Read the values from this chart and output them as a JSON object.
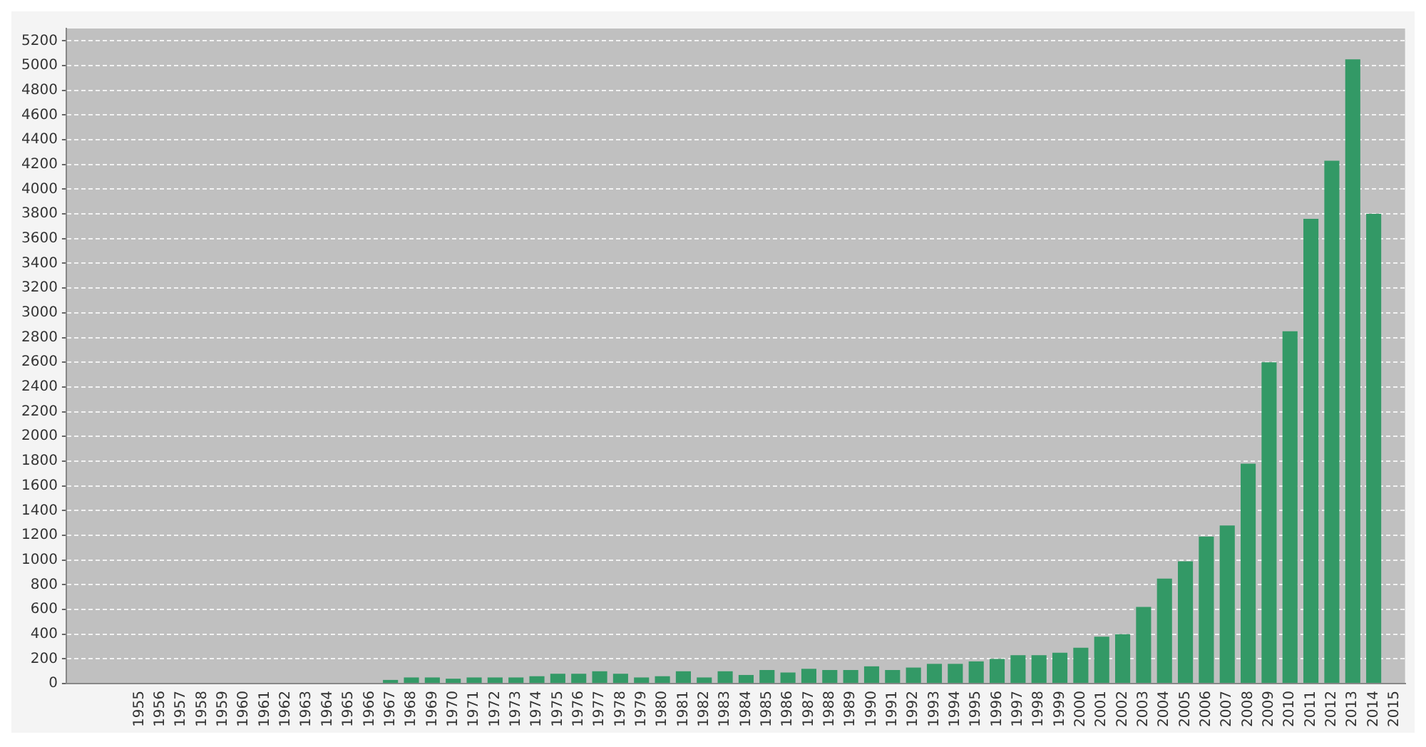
{
  "chart_data": {
    "type": "bar",
    "categories": [
      null,
      null,
      null,
      "1955",
      "1956",
      "1957",
      "1958",
      "1959",
      "1960",
      "1961",
      "1962",
      "1963",
      "1964",
      "1965",
      "1966",
      "1967",
      "1968",
      "1969",
      "1970",
      "1971",
      "1972",
      "1973",
      "1974",
      "1975",
      "1976",
      "1977",
      "1978",
      "1979",
      "1980",
      "1981",
      "1982",
      "1983",
      "1984",
      "1985",
      "1986",
      "1987",
      "1988",
      "1989",
      "1990",
      "1991",
      "1992",
      "1993",
      "1994",
      "1995",
      "1996",
      "1997",
      "1998",
      "1999",
      "2000",
      "2001",
      "2002",
      "2003",
      "2004",
      "2005",
      "2006",
      "2007",
      "2008",
      "2009",
      "2010",
      "2011",
      "2012",
      "2013",
      "2014",
      "2015"
    ],
    "values": [
      null,
      null,
      null,
      0,
      0,
      0,
      0,
      0,
      0,
      0,
      0,
      0,
      0,
      0,
      0,
      30,
      50,
      50,
      40,
      50,
      50,
      50,
      60,
      80,
      80,
      100,
      80,
      50,
      60,
      100,
      50,
      100,
      70,
      110,
      90,
      120,
      110,
      110,
      140,
      110,
      130,
      160,
      160,
      180,
      200,
      230,
      230,
      250,
      290,
      380,
      400,
      620,
      850,
      990,
      1190,
      1280,
      1780,
      2600,
      2850,
      3760,
      4230,
      5050,
      3800,
      0
    ],
    "color": "#339966",
    "ylim": [
      0,
      5300
    ],
    "yticks": [
      0,
      200,
      400,
      600,
      800,
      1000,
      1200,
      1400,
      1600,
      1800,
      2000,
      2200,
      2400,
      2600,
      2800,
      3000,
      3200,
      3400,
      3600,
      3800,
      4000,
      4200,
      4400,
      4600,
      4800,
      5000,
      5200
    ],
    "grid": "y"
  }
}
